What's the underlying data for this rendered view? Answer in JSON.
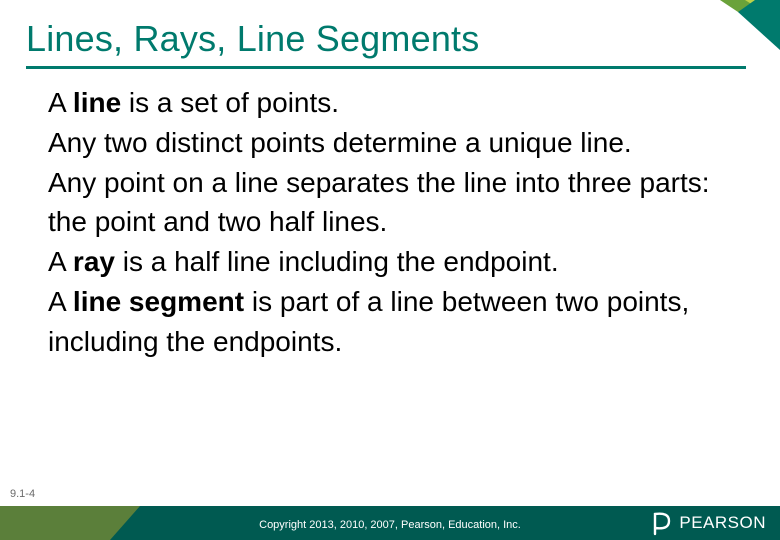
{
  "title": {
    "text": "Lines, Rays, Line Segments",
    "color": "#007a6d",
    "fontsize": 36,
    "underline_color": "#007a6d",
    "underline_width": 720,
    "underline_height": 3
  },
  "body": {
    "fontsize": 28,
    "color": "#000000",
    "lineheight": 1.42,
    "paragraphs": [
      {
        "runs": [
          {
            "t": "A ",
            "bold": false
          },
          {
            "t": "line",
            "bold": true
          },
          {
            "t": " is a set of points.",
            "bold": false
          }
        ]
      },
      {
        "runs": [
          {
            "t": "Any two distinct points determine a unique line.",
            "bold": false
          }
        ]
      },
      {
        "runs": [
          {
            "t": "Any point on a line separates the line into three parts: the point and two half lines.",
            "bold": false
          }
        ]
      },
      {
        "runs": [
          {
            "t": "A ",
            "bold": false
          },
          {
            "t": "ray",
            "bold": true
          },
          {
            "t": " is a half line including the endpoint.",
            "bold": false
          }
        ]
      },
      {
        "runs": [
          {
            "t": "A ",
            "bold": false
          },
          {
            "t": "line segment",
            "bold": true
          },
          {
            "t": " is part of a line between two points, including the endpoints.",
            "bold": false
          }
        ]
      }
    ]
  },
  "page_number": "9.1-4",
  "copyright": "Copyright 2013, 2010, 2007, Pearson, Education, Inc.",
  "logo": {
    "text": "PEARSON",
    "color": "#ffffff",
    "mark_stroke": "#ffffff"
  },
  "footer": {
    "left_color": "#5b7f3a",
    "left_width": 140,
    "right_color": "#005a51",
    "height": 34
  },
  "corner_accent": {
    "tri1_color": "#6aa23a",
    "tri2_color": "#bcd24a",
    "tri3_color": "#007a6d"
  }
}
